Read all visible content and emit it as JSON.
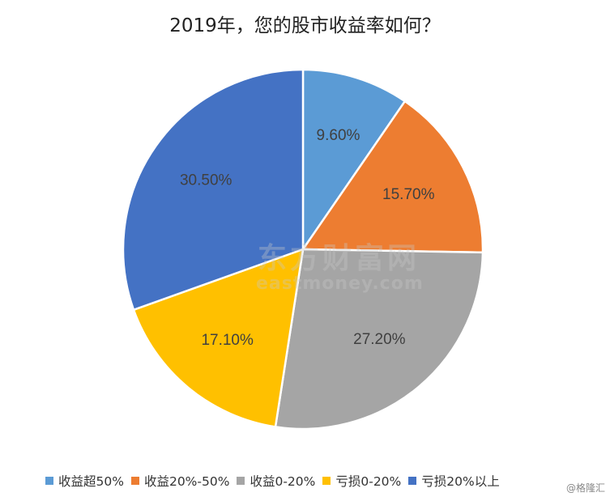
{
  "chart_data": {
    "type": "pie",
    "title": "2019年，您的股市收益率如何？",
    "categories": [
      "收益超50%",
      "收益20%-50%",
      "收益0-20%",
      "亏损0-20%",
      "亏损20%以上"
    ],
    "values": [
      9.6,
      15.7,
      27.2,
      17.1,
      30.5
    ],
    "labels": [
      "9.60%",
      "15.70%",
      "27.20%",
      "17.10%",
      "30.50%"
    ],
    "colors": [
      "#5B9BD5",
      "#ED7D31",
      "#A5A5A5",
      "#FFC000",
      "#4472C4"
    ],
    "legend_position": "bottom"
  },
  "watermark": {
    "cn": "东方财富网",
    "en": "eastmoney.com"
  },
  "credit": "@格隆汇"
}
